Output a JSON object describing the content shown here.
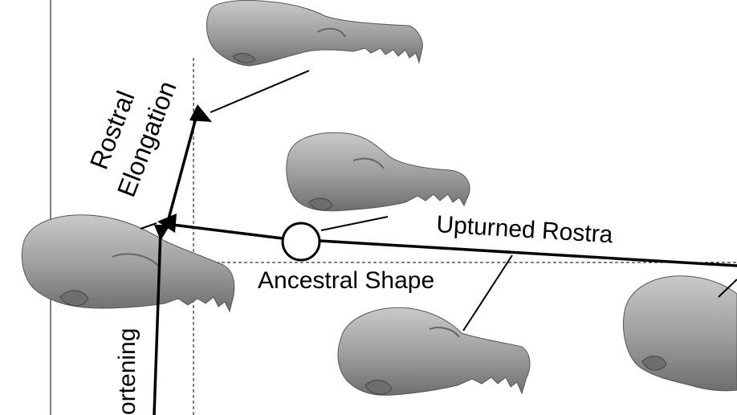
{
  "labels": {
    "rostral": "Rostral",
    "elongation": "Elongation",
    "upturned_rostra": "Upturned Rostra",
    "ancestral_shape": "Ancestral Shape",
    "shortening": "ortening"
  },
  "colors": {
    "ink": "#000000",
    "skull_fill": "#9c9c9c",
    "skull_shade": "#6e6e6e",
    "skull_light": "#c9c9c9",
    "background": "#ffffff"
  },
  "icons": {
    "ancestral_node": "circle-node-icon",
    "arrow_head": "triangle-arrowhead-icon"
  }
}
